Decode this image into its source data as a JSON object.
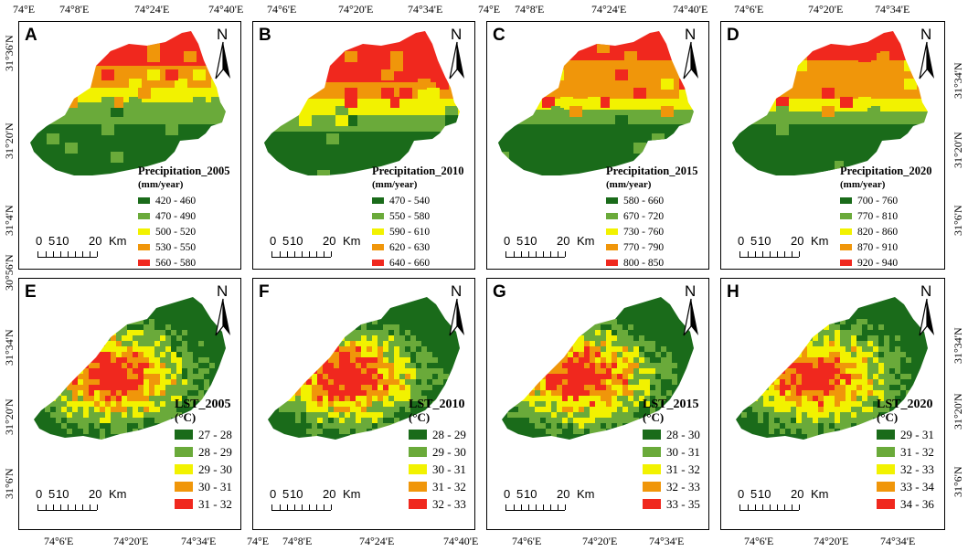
{
  "top_axis_labels": {
    "col1": [
      "74°E",
      "74°8'E",
      "74°24'E",
      "74°40'E"
    ],
    "col2": [
      "74°6'E",
      "74°20'E",
      "74°34'E"
    ],
    "col3": [
      "74°E",
      "74°8'E",
      "74°24'E",
      "74°40'E"
    ],
    "col4": [
      "74°6'E",
      "74°20'E",
      "74°34'E"
    ]
  },
  "bottom_axis_labels": {
    "col1": [
      "74°6'E",
      "74°20'E",
      "74°34'E"
    ],
    "col2": [
      "74°E",
      "74°8'E",
      "74°24'E",
      "74°40'E"
    ],
    "col3": [
      "74°6'E",
      "74°20'E",
      "74°34'E"
    ],
    "col4": [
      "74°6'E",
      "74°20'E",
      "74°34'E"
    ]
  },
  "left_axis_labels": {
    "row1": [
      "31°36'N",
      "31°20'N",
      "31°4'N",
      "30°56'N"
    ],
    "row2": [
      "31°34'N",
      "31°20'N",
      "31°6'N"
    ]
  },
  "right_axis_labels": {
    "row1": [
      "31°34'N",
      "31°20'N",
      "31°6'N"
    ],
    "row2": [
      "31°34'N",
      "31°20'N",
      "31°6'N"
    ]
  },
  "north_symbol": "N",
  "scale_bar": {
    "n0": "0",
    "n1": "5",
    "n2": "10",
    "n3": "20",
    "unit": "Km"
  },
  "panels": [
    {
      "label": "A",
      "legend_title": "Precipitation_2005",
      "legend_unit": "(mm/year)",
      "classes": [
        "420 - 460",
        "470 - 490",
        "500 - 520",
        "530 - 550",
        "560 - 580"
      ]
    },
    {
      "label": "B",
      "legend_title": "Precipitation_2010",
      "legend_unit": "(mm/year)",
      "classes": [
        "470 - 540",
        "550 - 580",
        "590 - 610",
        "620 - 630",
        "640 - 660"
      ]
    },
    {
      "label": "C",
      "legend_title": "Precipitation_2015",
      "legend_unit": "(mm/year)",
      "classes": [
        "580 - 660",
        "670 - 720",
        "730 - 760",
        "770 - 790",
        "800 - 850"
      ]
    },
    {
      "label": "D",
      "legend_title": "Precipitation_2020",
      "legend_unit": "(mm/year)",
      "classes": [
        "700 - 760",
        "770 - 810",
        "820 - 860",
        "870 - 910",
        "920 - 940"
      ]
    },
    {
      "label": "E",
      "legend_title": "LST_2005",
      "legend_unit": "(°C)",
      "classes": [
        "27 - 28",
        "28 - 29",
        "29 - 30",
        "30 - 31",
        "31 - 32"
      ]
    },
    {
      "label": "F",
      "legend_title": "LST_2010",
      "legend_unit": "(°C)",
      "classes": [
        "28 - 29",
        "29 - 30",
        "30 - 31",
        "31 - 32",
        "32 - 33"
      ]
    },
    {
      "label": "G",
      "legend_title": "LST_2015",
      "legend_unit": "(°C)",
      "classes": [
        "28 - 30",
        "30 - 31",
        "31 - 32",
        "32 - 33",
        "33 - 35"
      ]
    },
    {
      "label": "H",
      "legend_title": "LST_2020",
      "legend_unit": "(°C)",
      "classes": [
        "29 - 31",
        "31 - 32",
        "32 - 33",
        "33 - 34",
        "34 - 36"
      ]
    }
  ],
  "class_colors": [
    "#1a6b1a",
    "#6aaa3a",
    "#f2f200",
    "#f0960a",
    "#f0281e"
  ]
}
